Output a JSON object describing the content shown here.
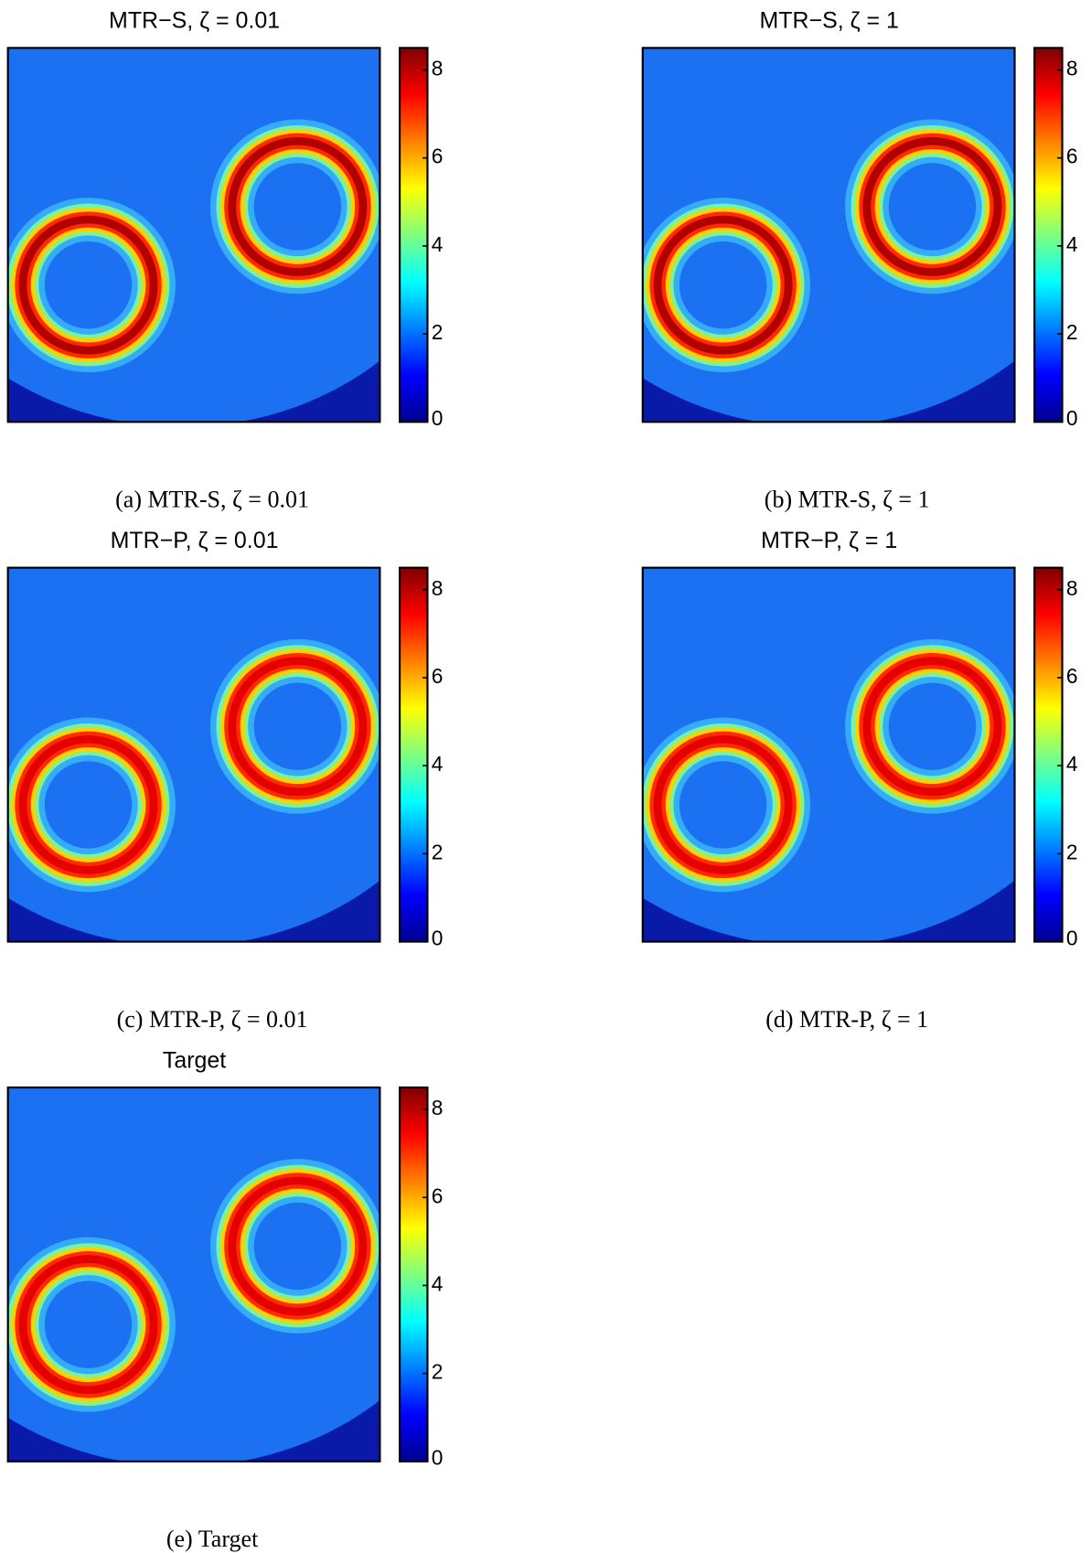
{
  "panels": [
    {
      "title": "MTR−S, ζ = 0.01",
      "caption": "(a) MTR-S, ζ = 0.01",
      "colorbar": {
        "lim": [
          0,
          8.5
        ],
        "ticks": [
          0,
          2,
          4,
          6,
          8
        ]
      }
    },
    {
      "title": "MTR−S, ζ = 1",
      "caption": "(b) MTR-S, ζ = 1",
      "colorbar": {
        "lim": [
          0,
          8.5
        ],
        "ticks": [
          0,
          2,
          4,
          6,
          8
        ]
      }
    },
    {
      "title": "MTR−P, ζ = 0.01",
      "caption": "(c) MTR-P, ζ = 0.01",
      "colorbar": {
        "lim": [
          0,
          8.5
        ],
        "ticks": [
          0,
          2,
          4,
          6,
          8
        ]
      }
    },
    {
      "title": "MTR−P, ζ = 1",
      "caption": "(d) MTR-P, ζ = 1",
      "colorbar": {
        "lim": [
          0,
          8.5
        ],
        "ticks": [
          0,
          2,
          4,
          6,
          8
        ]
      }
    },
    {
      "title": "Target",
      "caption": "(e) Target",
      "colorbar": {
        "lim": [
          0,
          8.5
        ],
        "ticks": [
          0,
          2,
          4,
          6,
          8
        ]
      }
    }
  ]
}
